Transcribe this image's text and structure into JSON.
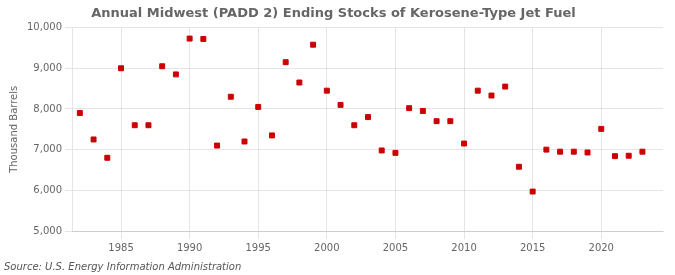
{
  "chart_data": {
    "type": "scatter",
    "title": "Annual Midwest (PADD 2) Ending Stocks of Kerosene-Type Jet Fuel",
    "ylabel": "Thousand Barrels",
    "annotation": "Source: U.S. Energy Information Administration",
    "x": [
      1982,
      1983,
      1984,
      1985,
      1986,
      1987,
      1988,
      1989,
      1990,
      1991,
      1992,
      1993,
      1994,
      1995,
      1996,
      1997,
      1998,
      1999,
      2000,
      2001,
      2002,
      2003,
      2004,
      2005,
      2006,
      2007,
      2008,
      2009,
      2010,
      2011,
      2012,
      2013,
      2014,
      2015,
      2016,
      2017,
      2018,
      2019,
      2020,
      2021,
      2022,
      2023
    ],
    "values": [
      7900,
      7250,
      6800,
      9000,
      7600,
      7600,
      9050,
      8850,
      9730,
      9720,
      7100,
      8300,
      7200,
      8050,
      7350,
      9150,
      8650,
      9580,
      8450,
      8100,
      7600,
      7800,
      6980,
      6920,
      8020,
      7950,
      7700,
      7700,
      7150,
      8450,
      8330,
      8550,
      6580,
      5970,
      7000,
      6950,
      6950,
      6930,
      7510,
      6840,
      6850,
      6950
    ],
    "color": "#cc0000",
    "marker": "square",
    "xlim": [
      1981.5,
      2024.5
    ],
    "xticks": [
      1985,
      1990,
      1995,
      2000,
      2005,
      2010,
      2015,
      2020
    ],
    "ylim": [
      5000,
      10000
    ],
    "yticks": [
      {
        "value": 5000,
        "label": "5,000"
      },
      {
        "value": 6000,
        "label": "6,000"
      },
      {
        "value": 7000,
        "label": "7,000"
      },
      {
        "value": 8000,
        "label": "8,000"
      },
      {
        "value": 9000,
        "label": "9,000"
      },
      {
        "value": 10000,
        "label": "10,000"
      }
    ],
    "grid": true
  }
}
